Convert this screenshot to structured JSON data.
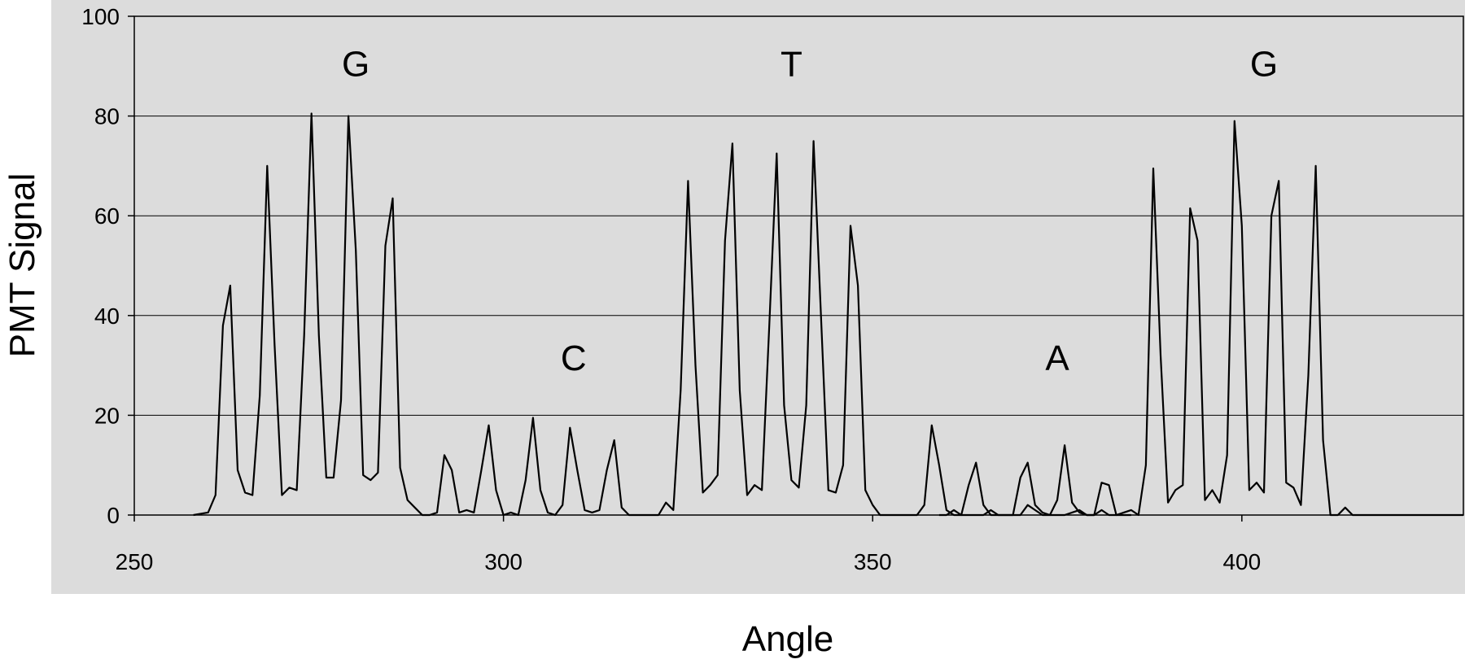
{
  "chart_data": {
    "type": "line",
    "title": "",
    "xlabel": "Angle",
    "ylabel": "PMT Signal",
    "xlim": [
      250,
      430
    ],
    "ylim": [
      0,
      100
    ],
    "x_ticks": [
      250,
      300,
      350,
      400
    ],
    "y_ticks": [
      0,
      20,
      40,
      60,
      80,
      100
    ],
    "grid": "horizontal",
    "colors": {
      "plot_background": "#dcdcdc",
      "line": "#000000",
      "grid": "#000000"
    },
    "annotations": [
      {
        "text": "G",
        "x": 280,
        "y": 88
      },
      {
        "text": "C",
        "x": 309.5,
        "y": 29
      },
      {
        "text": "T",
        "x": 339,
        "y": 88
      },
      {
        "text": "A",
        "x": 375,
        "y": 29
      },
      {
        "text": "G",
        "x": 403,
        "y": 88
      }
    ],
    "series": [
      {
        "x": [
          258,
          260,
          261,
          262,
          263,
          264,
          265,
          266,
          267,
          268,
          269,
          270,
          271,
          272,
          273,
          274,
          275,
          276,
          277,
          278,
          279,
          280,
          281,
          282,
          283,
          284,
          285,
          286,
          287,
          288,
          289,
          290,
          291,
          292,
          293,
          294,
          295,
          296,
          297,
          298,
          299,
          300,
          301,
          302,
          303,
          304,
          305,
          306,
          307,
          308,
          309,
          310,
          311,
          312,
          313,
          314,
          315,
          316,
          317,
          318,
          319,
          320,
          321,
          322,
          323,
          324,
          325,
          326,
          327,
          328,
          329,
          330,
          331,
          332,
          333,
          334,
          335,
          336,
          337,
          338,
          339,
          340,
          341,
          342,
          343,
          344,
          345,
          346,
          347,
          348,
          349,
          350,
          351,
          352,
          353,
          354,
          355,
          356,
          357,
          358,
          359,
          360,
          361,
          362,
          363,
          364,
          365,
          366,
          367,
          368,
          369,
          370,
          371,
          372,
          373,
          374,
          375,
          376,
          377,
          378,
          379,
          380,
          381,
          382,
          383,
          384,
          385,
          386,
          387,
          388,
          389,
          390,
          391,
          392,
          393,
          394,
          395,
          396,
          397,
          398,
          399,
          400,
          401,
          402,
          403,
          404,
          405,
          406,
          407,
          408,
          409,
          410,
          411,
          412,
          413,
          414,
          415,
          420,
          430
        ],
        "values": [
          0,
          0.5,
          4,
          38,
          46,
          9,
          4.5,
          4,
          24,
          70,
          34,
          4,
          5.5,
          5,
          36,
          80.5,
          36,
          7.5,
          7.5,
          23,
          80,
          53,
          8,
          7,
          8.5,
          54,
          63.5,
          9.5,
          3,
          1.5,
          0,
          0,
          0.5,
          12,
          9,
          0.5,
          1,
          0.5,
          9,
          18,
          5,
          0,
          0.5,
          0,
          7,
          19.5,
          5,
          0.5,
          0,
          2,
          17.5,
          9,
          1,
          0.5,
          1,
          9,
          15,
          1.5,
          0,
          0,
          0,
          0,
          0,
          2.5,
          1,
          25,
          67,
          30,
          4.5,
          6,
          8,
          55,
          74.5,
          25,
          4,
          6,
          5,
          38,
          72.5,
          22,
          7,
          5.5,
          22,
          75,
          40,
          5,
          4.5,
          10,
          58,
          46,
          5,
          2,
          0,
          0,
          0,
          0,
          0,
          0,
          2,
          18,
          10,
          1,
          0,
          0,
          6,
          10.5,
          2,
          0,
          0,
          0,
          0,
          7.5,
          10.5,
          2,
          0.5,
          0,
          3,
          14,
          2.5,
          0.5,
          0,
          0,
          6.5,
          6,
          0,
          0.5,
          1,
          0,
          10,
          69.5,
          32,
          2.5,
          5,
          6,
          61.5,
          55,
          3,
          5,
          2.5,
          12,
          79,
          58,
          5,
          6.5,
          4.5,
          60,
          67,
          6.5,
          5.5,
          2,
          28,
          70,
          15,
          0,
          0,
          1.5,
          0,
          0,
          0
        ]
      },
      {
        "x": [
          359,
          360,
          361,
          362,
          363,
          364,
          365,
          366,
          367,
          368,
          369,
          370,
          371,
          372,
          373,
          374,
          375,
          376,
          377,
          378,
          379,
          380,
          381,
          382,
          383,
          384,
          385
        ],
        "values": [
          0,
          0,
          1,
          0,
          0,
          0,
          0,
          1,
          0,
          0,
          0,
          0,
          2,
          1,
          0,
          0,
          0,
          0,
          0.5,
          1,
          0,
          0,
          1,
          0,
          0,
          0,
          0
        ]
      }
    ]
  }
}
